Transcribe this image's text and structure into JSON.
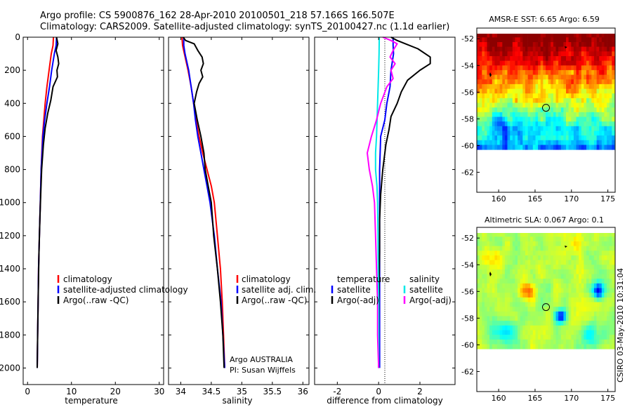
{
  "header": {
    "line1": "Argo profile: CS 5900876_162 28-Apr-2010 20100501_218 57.166S 166.507E",
    "line2": "Climatology: CARS2009. Satellite-adjusted climatology: synTS_20100427.nc (1.1d earlier)"
  },
  "credit": "CSIRO 03-May-2010 10:31:04",
  "colors": {
    "red": "#ff0000",
    "blue": "#0000ff",
    "black": "#000000",
    "cyan": "#00e8e8",
    "magenta": "#ff00ff"
  },
  "chart_data": [
    {
      "type": "line",
      "xlabel": "temperature",
      "xlim": [
        -1,
        31
      ],
      "ylim": [
        2100,
        0
      ],
      "xticks": [
        0,
        10,
        20,
        30
      ],
      "yticks": [
        0,
        200,
        400,
        600,
        800,
        1000,
        1200,
        1400,
        1600,
        1800,
        2000
      ],
      "legend": {
        "position": "bottom-right",
        "entries": [
          "climatology",
          "satellite-adjusted climatology",
          "Argo(..raw -QC)"
        ]
      },
      "series": [
        {
          "name": "climatology",
          "color": "#ff0000",
          "points": [
            [
              5.9,
              0
            ],
            [
              5.8,
              50
            ],
            [
              5.4,
              100
            ],
            [
              4.9,
              200
            ],
            [
              4.4,
              300
            ],
            [
              4.0,
              400
            ],
            [
              3.7,
              500
            ],
            [
              3.4,
              600
            ],
            [
              3.1,
              800
            ],
            [
              2.9,
              1000
            ],
            [
              2.7,
              1200
            ],
            [
              2.5,
              1400
            ],
            [
              2.4,
              1600
            ],
            [
              2.3,
              1800
            ],
            [
              2.2,
              2000
            ]
          ]
        },
        {
          "name": "satellite-adjusted climatology",
          "color": "#0000ff",
          "points": [
            [
              6.6,
              0
            ],
            [
              6.5,
              50
            ],
            [
              6.1,
              100
            ],
            [
              5.5,
              200
            ],
            [
              5.0,
              300
            ],
            [
              4.4,
              400
            ],
            [
              3.9,
              500
            ],
            [
              3.5,
              600
            ],
            [
              3.1,
              800
            ],
            [
              2.9,
              1000
            ],
            [
              2.7,
              1200
            ],
            [
              2.5,
              1400
            ],
            [
              2.4,
              1600
            ],
            [
              2.3,
              1800
            ],
            [
              2.2,
              2000
            ]
          ]
        },
        {
          "name": "Argo(..raw -QC)",
          "color": "#000000",
          "points": [
            [
              6.6,
              0
            ],
            [
              6.9,
              40
            ],
            [
              6.5,
              80
            ],
            [
              6.9,
              120
            ],
            [
              7.1,
              160
            ],
            [
              6.7,
              200
            ],
            [
              6.8,
              240
            ],
            [
              5.8,
              300
            ],
            [
              5.3,
              380
            ],
            [
              4.6,
              460
            ],
            [
              4.0,
              550
            ],
            [
              3.6,
              650
            ],
            [
              3.2,
              800
            ],
            [
              3.0,
              950
            ],
            [
              2.8,
              1100
            ],
            [
              2.6,
              1300
            ],
            [
              2.5,
              1450
            ],
            [
              2.4,
              1600
            ],
            [
              2.3,
              1800
            ],
            [
              2.2,
              2000
            ]
          ]
        }
      ]
    },
    {
      "type": "line",
      "xlabel": "salinity",
      "xlim": [
        33.8,
        36.1
      ],
      "ylim": [
        2100,
        0
      ],
      "xticks": [
        34,
        34.5,
        35,
        35.5,
        36
      ],
      "xtick_labels": [
        "34",
        "34.5",
        "35",
        "35.5",
        "36"
      ],
      "legend": {
        "position": "bottom-right",
        "entries": [
          "climatology",
          "satellite adj. clim.",
          "Argo(..raw -QC)"
        ]
      },
      "annotations": [
        "Argo AUSTRALIA",
        "PI: Susan Wijffels"
      ],
      "series": [
        {
          "name": "climatology",
          "color": "#ff0000",
          "points": [
            [
              34.02,
              0
            ],
            [
              34.03,
              50
            ],
            [
              34.06,
              100
            ],
            [
              34.09,
              150
            ],
            [
              34.12,
              200
            ],
            [
              34.17,
              300
            ],
            [
              34.21,
              400
            ],
            [
              34.25,
              500
            ],
            [
              34.3,
              600
            ],
            [
              34.36,
              700
            ],
            [
              34.43,
              800
            ],
            [
              34.5,
              900
            ],
            [
              34.55,
              1000
            ],
            [
              34.6,
              1200
            ],
            [
              34.65,
              1400
            ],
            [
              34.68,
              1600
            ],
            [
              34.7,
              1800
            ],
            [
              34.72,
              2000
            ]
          ]
        },
        {
          "name": "satellite adj. clim.",
          "color": "#0000ff",
          "points": [
            [
              34.05,
              0
            ],
            [
              34.05,
              50
            ],
            [
              34.07,
              100
            ],
            [
              34.1,
              150
            ],
            [
              34.13,
              200
            ],
            [
              34.17,
              300
            ],
            [
              34.21,
              400
            ],
            [
              34.24,
              500
            ],
            [
              34.28,
              600
            ],
            [
              34.33,
              700
            ],
            [
              34.38,
              800
            ],
            [
              34.43,
              900
            ],
            [
              34.48,
              1000
            ],
            [
              34.55,
              1200
            ],
            [
              34.6,
              1400
            ],
            [
              34.66,
              1600
            ],
            [
              34.69,
              1800
            ],
            [
              34.72,
              2000
            ]
          ]
        },
        {
          "name": "Argo(..raw -QC)",
          "color": "#000000",
          "points": [
            [
              34.04,
              0
            ],
            [
              34.08,
              20
            ],
            [
              34.22,
              40
            ],
            [
              34.28,
              80
            ],
            [
              34.35,
              120
            ],
            [
              34.37,
              160
            ],
            [
              34.33,
              200
            ],
            [
              34.36,
              240
            ],
            [
              34.3,
              280
            ],
            [
              34.26,
              330
            ],
            [
              34.22,
              400
            ],
            [
              34.27,
              500
            ],
            [
              34.33,
              600
            ],
            [
              34.38,
              700
            ],
            [
              34.4,
              800
            ],
            [
              34.45,
              900
            ],
            [
              34.5,
              1000
            ],
            [
              34.54,
              1200
            ],
            [
              34.6,
              1400
            ],
            [
              34.65,
              1600
            ],
            [
              34.69,
              1800
            ],
            [
              34.71,
              2000
            ]
          ]
        }
      ]
    },
    {
      "type": "line",
      "xlabel": "difference from climatology",
      "xlim": [
        -3.1,
        3.7
      ],
      "ylim": [
        2100,
        0
      ],
      "xticks": [
        -2,
        0,
        2
      ],
      "legend": {
        "position": "bottom",
        "entries": [
          "temperature",
          "satellite",
          "Argo(-adj)",
          "salinity",
          "satellite",
          "Argo(-adj)"
        ]
      },
      "series": [
        {
          "name": "temperature satellite",
          "color": "#0000ff",
          "points": [
            [
              0.7,
              0
            ],
            [
              0.7,
              50
            ],
            [
              0.72,
              100
            ],
            [
              0.6,
              200
            ],
            [
              0.55,
              300
            ],
            [
              0.4,
              400
            ],
            [
              0.3,
              500
            ],
            [
              0.1,
              600
            ],
            [
              0.05,
              800
            ],
            [
              0.05,
              1000
            ],
            [
              0.05,
              1200
            ],
            [
              0.05,
              1400
            ],
            [
              0.05,
              1600
            ],
            [
              0.05,
              1800
            ],
            [
              0.05,
              2000
            ]
          ]
        },
        {
          "name": "temperature Argo(-adj)",
          "color": "#000000",
          "points": [
            [
              0.6,
              0
            ],
            [
              0.9,
              20
            ],
            [
              1.3,
              40
            ],
            [
              1.9,
              70
            ],
            [
              2.5,
              120
            ],
            [
              2.5,
              160
            ],
            [
              2.0,
              200
            ],
            [
              1.4,
              260
            ],
            [
              1.1,
              330
            ],
            [
              0.9,
              400
            ],
            [
              0.6,
              480
            ],
            [
              0.5,
              560
            ],
            [
              0.35,
              650
            ],
            [
              0.2,
              800
            ],
            [
              0.1,
              950
            ],
            [
              0.05,
              1100
            ],
            [
              0.05,
              1300
            ],
            [
              0.02,
              1500
            ],
            [
              0.01,
              1700
            ],
            [
              0.0,
              1900
            ],
            [
              0.0,
              2000
            ]
          ]
        },
        {
          "name": "salinity satellite",
          "color": "#00e8e8",
          "points": [
            [
              0.03,
              0
            ],
            [
              0.02,
              100
            ],
            [
              0.0,
              200
            ],
            [
              -0.05,
              400
            ],
            [
              -0.1,
              600
            ],
            [
              -0.15,
              700
            ],
            [
              -0.15,
              800
            ],
            [
              -0.08,
              900
            ],
            [
              -0.05,
              1000
            ],
            [
              -0.03,
              1200
            ],
            [
              -0.02,
              1400
            ],
            [
              0.0,
              1600
            ],
            [
              0.0,
              1800
            ],
            [
              0.0,
              2000
            ]
          ]
        },
        {
          "name": "salinity Argo(-adj)",
          "color": "#ff00ff",
          "points": [
            [
              0.2,
              0
            ],
            [
              0.6,
              20
            ],
            [
              0.9,
              40
            ],
            [
              0.7,
              80
            ],
            [
              0.55,
              120
            ],
            [
              0.8,
              160
            ],
            [
              0.6,
              200
            ],
            [
              0.7,
              250
            ],
            [
              0.4,
              300
            ],
            [
              0.1,
              400
            ],
            [
              -0.1,
              500
            ],
            [
              -0.35,
              600
            ],
            [
              -0.55,
              700
            ],
            [
              -0.45,
              800
            ],
            [
              -0.3,
              900
            ],
            [
              -0.2,
              1000
            ],
            [
              -0.15,
              1200
            ],
            [
              -0.1,
              1400
            ],
            [
              -0.05,
              1600
            ],
            [
              -0.05,
              1800
            ],
            [
              0.0,
              2000
            ]
          ]
        }
      ]
    },
    {
      "type": "heatmap",
      "title": "AMSR-E SST: 6.65 Argo: 6.59",
      "xlim": [
        157,
        176
      ],
      "ylim": [
        -63.5,
        -51.2
      ],
      "xticks": [
        160,
        165,
        170,
        175
      ],
      "yticks": [
        -52,
        -54,
        -56,
        -58,
        -60,
        -62
      ],
      "data_extent_lat": [
        -60,
        -51.2
      ],
      "marker": {
        "lon": 166.5,
        "lat": -57.17
      }
    },
    {
      "type": "heatmap",
      "title": "Altimetric SLA: 0.067 Argo: 0.1",
      "xlim": [
        157,
        176
      ],
      "ylim": [
        -63.5,
        -51.2
      ],
      "xticks": [
        160,
        165,
        170,
        175
      ],
      "yticks": [
        -52,
        -54,
        -56,
        -58,
        -60,
        -62
      ],
      "data_extent_lat": [
        -60,
        -51.2
      ],
      "marker": {
        "lon": 166.5,
        "lat": -57.17
      }
    }
  ]
}
